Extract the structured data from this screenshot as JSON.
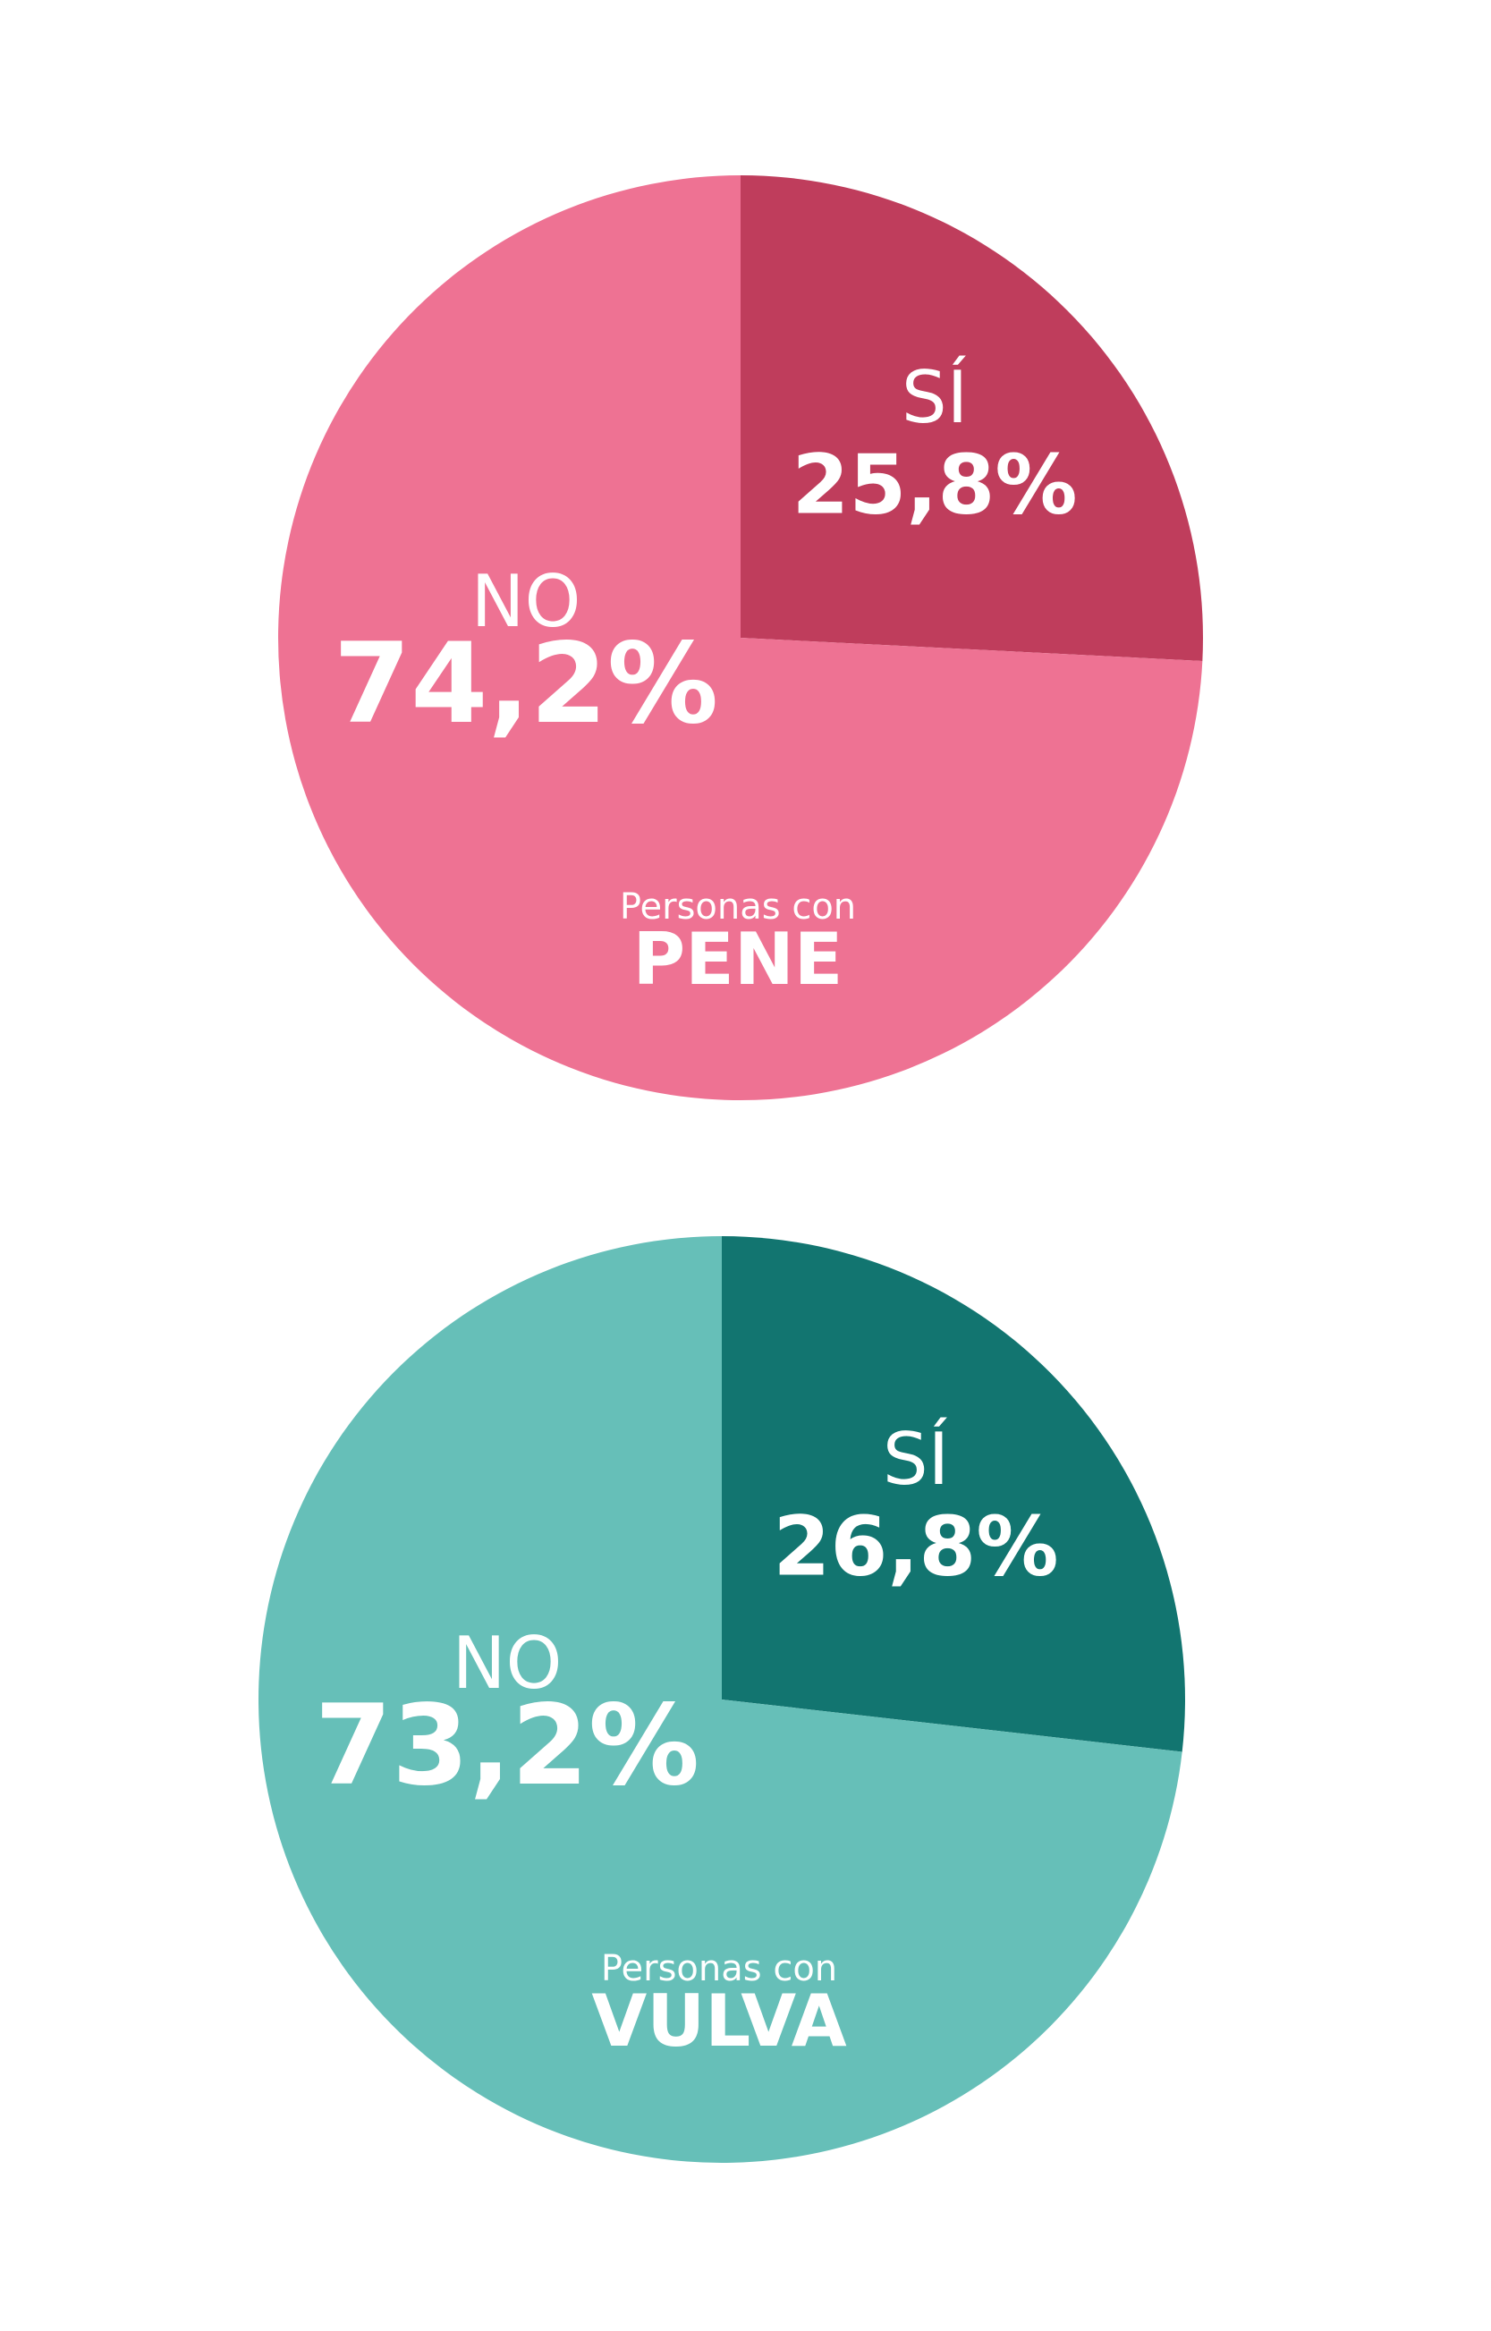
{
  "chart_data": [
    {
      "type": "pie",
      "subtitle": "Personas con",
      "title": "PENE",
      "categories": [
        "SÍ",
        "NO"
      ],
      "values": [
        25.8,
        74.2
      ],
      "value_labels": [
        "25,8%",
        "74,2%"
      ],
      "colors": [
        "#bf3d5c",
        "#ee7293"
      ]
    },
    {
      "type": "pie",
      "subtitle": "Personas con",
      "title": "VULVA",
      "categories": [
        "SÍ",
        "NO"
      ],
      "values": [
        26.8,
        73.2
      ],
      "value_labels": [
        "26,8%",
        "73,2%"
      ],
      "colors": [
        "#127570",
        "#66bfb8"
      ]
    }
  ]
}
